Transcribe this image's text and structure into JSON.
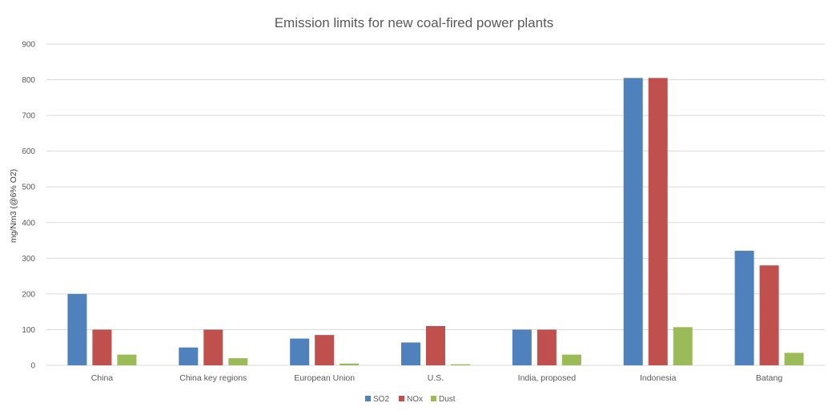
{
  "chart_data": {
    "type": "bar",
    "title": "Emission limits  for new coal-fired power plants",
    "xlabel": "",
    "ylabel": "mg/Nm3  (@6% O2)",
    "ylim": [
      0,
      900
    ],
    "yticks": [
      0,
      100,
      200,
      300,
      400,
      500,
      600,
      700,
      800,
      900
    ],
    "grid": true,
    "legend": "bottom",
    "categories": [
      "China",
      "China key regions",
      "European Union",
      "U.S.",
      "India, proposed",
      "Indonesia",
      "Batang"
    ],
    "series": [
      {
        "name": "SO2",
        "color": "#4f81bd",
        "values": [
          200,
          50,
          75,
          64,
          100,
          805,
          321
        ]
      },
      {
        "name": "NOx",
        "color": "#c0504d",
        "values": [
          100,
          100,
          85,
          110,
          100,
          805,
          280
        ]
      },
      {
        "name": "Dust",
        "color": "#9bbb59",
        "values": [
          30,
          20,
          5,
          3,
          30,
          107,
          35
        ]
      }
    ]
  }
}
